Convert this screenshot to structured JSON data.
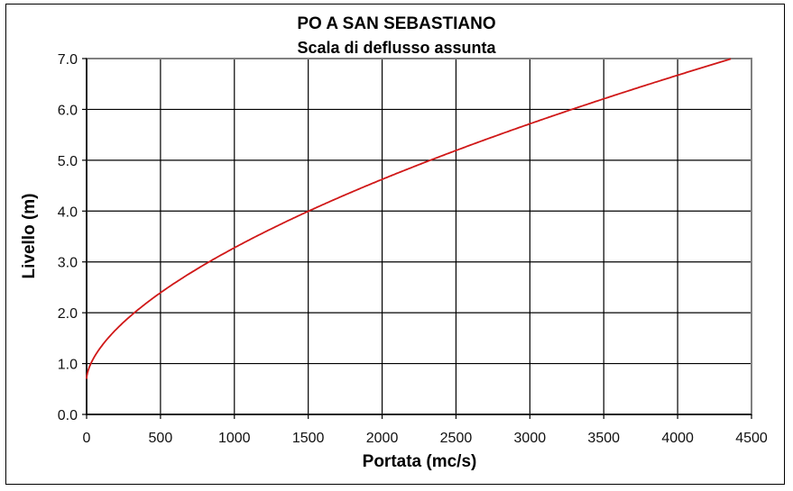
{
  "chart_data": {
    "type": "line",
    "title": "PO A SAN SEBASTIANO",
    "subtitle": "Scala di deflusso assunta",
    "xlabel": "Portata (mc/s)",
    "ylabel": "Livello (m)",
    "xlim": [
      0,
      4500
    ],
    "ylim": [
      0.0,
      7.0
    ],
    "x_ticks": [
      "0",
      "500",
      "1000",
      "1500",
      "2000",
      "2500",
      "3000",
      "3500",
      "4000",
      "4500"
    ],
    "y_ticks": [
      "0.0",
      "1.0",
      "2.0",
      "3.0",
      "4.0",
      "5.0",
      "6.0",
      "7.0"
    ],
    "grid": true,
    "legend": null,
    "series": [
      {
        "name": "Scala di deflusso",
        "color": "#d01818",
        "x": [
          0,
          5,
          20,
          60,
          120,
          200,
          290,
          400,
          500,
          650,
          780,
          1000,
          1250,
          1500,
          1750,
          2000,
          2380,
          2500,
          2750,
          3000,
          3300,
          3500,
          3750,
          4000,
          4250,
          4360
        ],
        "y": [
          0.7,
          0.88,
          1.0,
          1.3,
          1.55,
          1.74,
          1.95,
          2.2,
          2.45,
          2.72,
          2.95,
          3.33,
          3.67,
          4.0,
          4.3,
          4.6,
          5.0,
          5.15,
          5.42,
          5.7,
          6.0,
          6.2,
          6.42,
          6.65,
          6.88,
          7.0
        ]
      }
    ]
  }
}
